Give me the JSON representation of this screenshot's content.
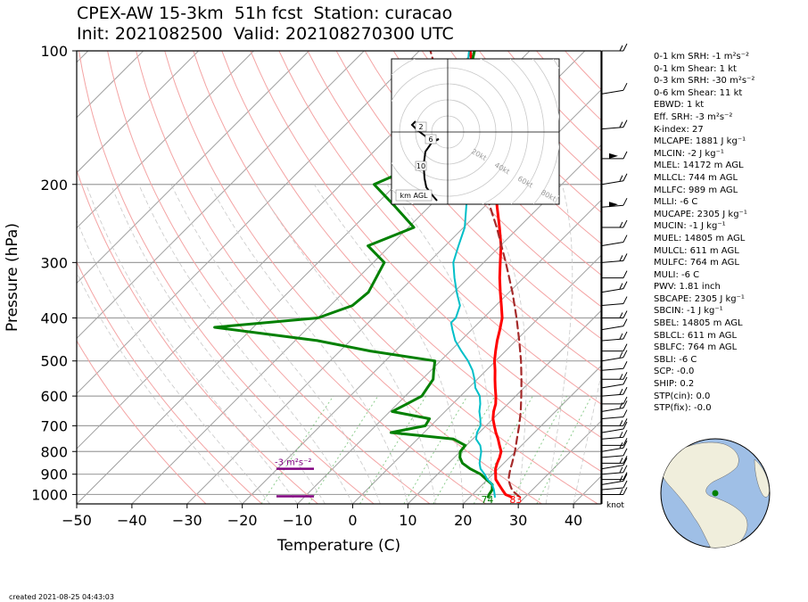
{
  "title_line1": "CPEX-AW 15-3km  51h fcst  Station: curacao",
  "title_line2": "Init: 2021082500  Valid: 202108270300 UTC",
  "created": "created 2021-08-25 04:43:03",
  "indices": [
    "0-1 km SRH: -1 m²s⁻²",
    "0-1 km Shear: 1 kt",
    "0-3 km SRH: -30 m²s⁻²",
    "0-6 km Shear: 11 kt",
    "EBWD: 1 kt",
    "Eff. SRH: -3 m²s⁻²",
    "K-index: 27",
    "MLCAPE: 1881 J kg⁻¹",
    "MLCIN: -2 J kg⁻¹",
    "MLEL: 14172 m AGL",
    "MLLCL: 744 m AGL",
    "MLLFC: 989 m AGL",
    "MLLI: -6 C",
    "MUCAPE: 2305 J kg⁻¹",
    "MUCIN: -1 J kg⁻¹",
    "MUEL: 14805 m AGL",
    "MULCL: 611 m AGL",
    "MULFC: 764 m AGL",
    "MULI: -6 C",
    "PWV: 1.81 inch",
    "SBCAPE: 2305 J kg⁻¹",
    "SBCIN: -1 J kg⁻¹",
    "SBEL: 14805 m AGL",
    "SBLCL: 611 m AGL",
    "SBLFC: 764 m AGL",
    "SBLI: -6 C",
    "SCP: -0.0",
    "SHIP: 0.2",
    "STP(cin): 0.0",
    "STP(fix): -0.0"
  ],
  "colors": {
    "temperature": "#ff0000",
    "dewpoint": "#008000",
    "wetbulb": "#00bfc8",
    "parcel": "#a52a2a",
    "srh_bar": "#800080",
    "isobar": "#a0a0a0",
    "isotherm": "#a0a0a0",
    "dry_adiabat": "#f4a4a4",
    "mixing_ratio": "#5fb85f",
    "globe_land": "#f0eedc",
    "globe_ocean": "#9fbfe6"
  },
  "chart_data": {
    "type": "skew-t",
    "xlabel": "Temperature (C)",
    "ylabel": "Pressure (hPa)",
    "x_ticks": [
      -50,
      -40,
      -30,
      -20,
      -10,
      0,
      10,
      20,
      30,
      40
    ],
    "y_ticks": [
      100,
      200,
      300,
      400,
      500,
      600,
      700,
      800,
      900,
      1000
    ],
    "xlim": [
      -50,
      45
    ],
    "ylim": [
      1050,
      100
    ],
    "skew": "45deg",
    "series": [
      {
        "key": "temperature",
        "points": [
          [
            1013,
            27.5
          ],
          [
            1000,
            26
          ],
          [
            975,
            24.5
          ],
          [
            950,
            23
          ],
          [
            925,
            21.5
          ],
          [
            900,
            20.5
          ],
          [
            875,
            19.5
          ],
          [
            850,
            18.8
          ],
          [
            825,
            18.2
          ],
          [
            800,
            17.4
          ],
          [
            775,
            16
          ],
          [
            750,
            14.6
          ],
          [
            725,
            13
          ],
          [
            700,
            11.5
          ],
          [
            675,
            10
          ],
          [
            650,
            8.8
          ],
          [
            625,
            7.8
          ],
          [
            600,
            6.4
          ],
          [
            575,
            4.8
          ],
          [
            550,
            3.2
          ],
          [
            525,
            1.6
          ],
          [
            500,
            -0.2
          ],
          [
            475,
            -1.8
          ],
          [
            450,
            -3.4
          ],
          [
            425,
            -4.9
          ],
          [
            400,
            -6.6
          ],
          [
            375,
            -9
          ],
          [
            350,
            -11.6
          ],
          [
            325,
            -14.3
          ],
          [
            300,
            -17
          ],
          [
            275,
            -19.9
          ],
          [
            250,
            -23.5
          ],
          [
            225,
            -27.6
          ],
          [
            200,
            -32.1
          ],
          [
            175,
            -37.5
          ],
          [
            150,
            -44
          ],
          [
            125,
            -51.5
          ],
          [
            110,
            -57
          ],
          [
            100,
            -60.8
          ]
        ]
      },
      {
        "key": "dewpoint",
        "points": [
          [
            1013,
            23.3
          ],
          [
            1000,
            23
          ],
          [
            975,
            22.7
          ],
          [
            950,
            21.8
          ],
          [
            925,
            19.8
          ],
          [
            900,
            17.8
          ],
          [
            875,
            14.9
          ],
          [
            850,
            12.5
          ],
          [
            825,
            11
          ],
          [
            800,
            10
          ],
          [
            775,
            9.8
          ],
          [
            750,
            6.5
          ],
          [
            725,
            -6
          ],
          [
            700,
            -1
          ],
          [
            675,
            -1.5
          ],
          [
            650,
            -9.6
          ],
          [
            625,
            -8.3
          ],
          [
            600,
            -7
          ],
          [
            575,
            -7.5
          ],
          [
            550,
            -8
          ],
          [
            525,
            -9.5
          ],
          [
            500,
            -11
          ],
          [
            475,
            -24.5
          ],
          [
            450,
            -36
          ],
          [
            420,
            -57
          ],
          [
            400,
            -40
          ],
          [
            375,
            -36
          ],
          [
            350,
            -35.5
          ],
          [
            300,
            -38
          ],
          [
            275,
            -44
          ],
          [
            250,
            -39
          ],
          [
            225,
            -46
          ],
          [
            200,
            -54
          ],
          [
            175,
            -48
          ],
          [
            150,
            -50
          ],
          [
            125,
            -54
          ],
          [
            100,
            -60
          ]
        ]
      },
      {
        "key": "wetbulb",
        "points": [
          [
            1013,
            24.5
          ],
          [
            1000,
            24
          ],
          [
            975,
            23
          ],
          [
            950,
            21.8
          ],
          [
            925,
            20
          ],
          [
            900,
            18.5
          ],
          [
            875,
            16.8
          ],
          [
            850,
            15.6
          ],
          [
            825,
            14.7
          ],
          [
            800,
            13.8
          ],
          [
            775,
            12.5
          ],
          [
            750,
            10.6
          ],
          [
            725,
            9.6
          ],
          [
            700,
            9
          ],
          [
            675,
            7.7
          ],
          [
            650,
            6.2
          ],
          [
            625,
            5
          ],
          [
            600,
            3.5
          ],
          [
            575,
            1.2
          ],
          [
            550,
            -0.5
          ],
          [
            525,
            -2.5
          ],
          [
            500,
            -5
          ],
          [
            475,
            -8
          ],
          [
            450,
            -11
          ],
          [
            425,
            -13.5
          ],
          [
            410,
            -15
          ],
          [
            400,
            -15
          ],
          [
            375,
            -16.5
          ],
          [
            350,
            -19.5
          ],
          [
            325,
            -22.5
          ],
          [
            300,
            -25.5
          ],
          [
            275,
            -27.6
          ],
          [
            250,
            -29.8
          ],
          [
            225,
            -33.2
          ],
          [
            200,
            -37
          ],
          [
            175,
            -41.6
          ],
          [
            150,
            -47.5
          ],
          [
            125,
            -53.8
          ],
          [
            110,
            -58
          ],
          [
            100,
            -61
          ]
        ]
      },
      {
        "key": "parcel",
        "dashed": true,
        "points": [
          [
            1013,
            29
          ],
          [
            980,
            26.5
          ],
          [
            950,
            25
          ],
          [
            925,
            23.8
          ],
          [
            900,
            23
          ],
          [
            875,
            22.2
          ],
          [
            850,
            21.5
          ],
          [
            800,
            19.9
          ],
          [
            750,
            18
          ],
          [
            700,
            16
          ],
          [
            650,
            13.7
          ],
          [
            600,
            11
          ],
          [
            550,
            8
          ],
          [
            500,
            4.6
          ],
          [
            450,
            0.6
          ],
          [
            400,
            -4
          ],
          [
            350,
            -9.4
          ],
          [
            300,
            -16
          ],
          [
            250,
            -24
          ],
          [
            200,
            -34.3
          ],
          [
            150,
            -48.5
          ],
          [
            125,
            -58
          ],
          [
            100,
            -68
          ]
        ]
      }
    ],
    "surface_labels": [
      {
        "text": "74",
        "temp": 23.3,
        "color": "#008000"
      },
      {
        "text": "83",
        "temp": 27.5,
        "color": "#ff0000"
      }
    ],
    "srh_annotation": {
      "text": "-3 m²s⁻²",
      "p_top": 875,
      "p_bottom": 1000
    },
    "wind_units_label": "knot",
    "hodograph": {
      "ring_labels": [
        "20kt",
        "40kt",
        "60kt",
        "80kt"
      ],
      "height_labels": [
        "2",
        "6",
        "10"
      ],
      "legend": "km AGL"
    }
  }
}
